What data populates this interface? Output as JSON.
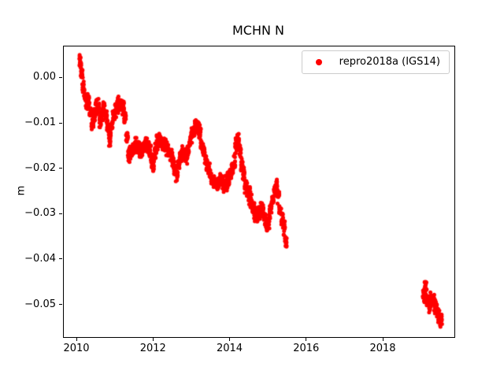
{
  "figure": {
    "background": "#ffffff"
  },
  "chart_data": {
    "type": "scatter",
    "title": "MCHN N",
    "xlabel": "",
    "ylabel": "m",
    "xlim": [
      2009.65,
      2019.85
    ],
    "ylim": [
      -0.057,
      0.007
    ],
    "grid": false,
    "legend_position": "upper right",
    "xticks": [
      {
        "value": 2010,
        "label": "2010"
      },
      {
        "value": 2012,
        "label": "2012"
      },
      {
        "value": 2014,
        "label": "2014"
      },
      {
        "value": 2016,
        "label": "2016"
      },
      {
        "value": 2018,
        "label": "2018"
      }
    ],
    "yticks": [
      {
        "value": 0.0,
        "label": "0.00"
      },
      {
        "value": -0.01,
        "label": "−0.01"
      },
      {
        "value": -0.02,
        "label": "−0.02"
      },
      {
        "value": -0.03,
        "label": "−0.03"
      },
      {
        "value": -0.04,
        "label": "−0.04"
      },
      {
        "value": -0.05,
        "label": "−0.05"
      }
    ],
    "legend": {
      "label": "repro2018a (IGS14)",
      "marker": "circle",
      "marker_color": "#ff0000"
    },
    "series": [
      {
        "name": "repro2018a (IGS14)",
        "color": "#ff0000",
        "marker": "dot",
        "points_per_anchor": 16,
        "x_spread": 0.055,
        "y_jitter": 0.0013,
        "trend": [
          [
            2010.08,
            0.0035
          ],
          [
            2010.12,
            0.001
          ],
          [
            2010.16,
            -0.002
          ],
          [
            2010.2,
            -0.004
          ],
          [
            2010.25,
            -0.0055
          ],
          [
            2010.3,
            -0.005
          ],
          [
            2010.35,
            -0.0075
          ],
          [
            2010.4,
            -0.0095
          ],
          [
            2010.45,
            -0.008
          ],
          [
            2010.5,
            -0.006
          ],
          [
            2010.55,
            -0.0065
          ],
          [
            2010.6,
            -0.0095
          ],
          [
            2010.65,
            -0.008
          ],
          [
            2010.7,
            -0.0065
          ],
          [
            2010.75,
            -0.0085
          ],
          [
            2010.8,
            -0.011
          ],
          [
            2010.85,
            -0.0135
          ],
          [
            2010.9,
            -0.0105
          ],
          [
            2010.95,
            -0.008
          ],
          [
            2011.0,
            -0.0075
          ],
          [
            2011.05,
            -0.006
          ],
          [
            2011.1,
            -0.0055
          ],
          [
            2011.15,
            -0.006
          ],
          [
            2011.2,
            -0.0065
          ],
          [
            2011.25,
            -0.009
          ],
          [
            2011.3,
            -0.013
          ],
          [
            2011.35,
            -0.017
          ],
          [
            2011.4,
            -0.016
          ],
          [
            2011.45,
            -0.0155
          ],
          [
            2011.5,
            -0.015
          ],
          [
            2011.55,
            -0.0145
          ],
          [
            2011.6,
            -0.0155
          ],
          [
            2011.65,
            -0.016
          ],
          [
            2011.7,
            -0.0155
          ],
          [
            2011.75,
            -0.015
          ],
          [
            2011.8,
            -0.0145
          ],
          [
            2011.85,
            -0.015
          ],
          [
            2011.9,
            -0.016
          ],
          [
            2011.95,
            -0.0185
          ],
          [
            2012.0,
            -0.0195
          ],
          [
            2012.05,
            -0.016
          ],
          [
            2012.1,
            -0.014
          ],
          [
            2012.15,
            -0.0135
          ],
          [
            2012.2,
            -0.014
          ],
          [
            2012.25,
            -0.0145
          ],
          [
            2012.3,
            -0.015
          ],
          [
            2012.35,
            -0.0155
          ],
          [
            2012.4,
            -0.016
          ],
          [
            2012.45,
            -0.017
          ],
          [
            2012.5,
            -0.018
          ],
          [
            2012.55,
            -0.02
          ],
          [
            2012.6,
            -0.0215
          ],
          [
            2012.65,
            -0.019
          ],
          [
            2012.7,
            -0.017
          ],
          [
            2012.75,
            -0.0165
          ],
          [
            2012.8,
            -0.017
          ],
          [
            2012.85,
            -0.0175
          ],
          [
            2012.9,
            -0.016
          ],
          [
            2012.95,
            -0.014
          ],
          [
            2013.0,
            -0.0125
          ],
          [
            2013.05,
            -0.0115
          ],
          [
            2013.1,
            -0.0105
          ],
          [
            2013.15,
            -0.0105
          ],
          [
            2013.2,
            -0.012
          ],
          [
            2013.25,
            -0.0145
          ],
          [
            2013.3,
            -0.016
          ],
          [
            2013.35,
            -0.0175
          ],
          [
            2013.4,
            -0.019
          ],
          [
            2013.45,
            -0.0205
          ],
          [
            2013.5,
            -0.022
          ],
          [
            2013.55,
            -0.0225
          ],
          [
            2013.6,
            -0.023
          ],
          [
            2013.65,
            -0.0235
          ],
          [
            2013.7,
            -0.023
          ],
          [
            2013.75,
            -0.0225
          ],
          [
            2013.8,
            -0.023
          ],
          [
            2013.85,
            -0.0235
          ],
          [
            2013.9,
            -0.023
          ],
          [
            2013.95,
            -0.022
          ],
          [
            2014.0,
            -0.021
          ],
          [
            2014.05,
            -0.02
          ],
          [
            2014.1,
            -0.0185
          ],
          [
            2014.15,
            -0.0145
          ],
          [
            2014.2,
            -0.0135
          ],
          [
            2014.25,
            -0.016
          ],
          [
            2014.3,
            -0.019
          ],
          [
            2014.35,
            -0.021
          ],
          [
            2014.4,
            -0.0235
          ],
          [
            2014.45,
            -0.025
          ],
          [
            2014.5,
            -0.026
          ],
          [
            2014.55,
            -0.027
          ],
          [
            2014.6,
            -0.0285
          ],
          [
            2014.65,
            -0.0295
          ],
          [
            2014.7,
            -0.03
          ],
          [
            2014.75,
            -0.0295
          ],
          [
            2014.8,
            -0.029
          ],
          [
            2014.85,
            -0.0295
          ],
          [
            2014.9,
            -0.031
          ],
          [
            2014.95,
            -0.0325
          ],
          [
            2015.0,
            -0.031
          ],
          [
            2015.05,
            -0.029
          ],
          [
            2015.1,
            -0.027
          ],
          [
            2015.15,
            -0.0245
          ],
          [
            2015.2,
            -0.0235
          ],
          [
            2015.25,
            -0.026
          ],
          [
            2015.3,
            -0.029
          ],
          [
            2015.35,
            -0.031
          ],
          [
            2015.4,
            -0.033
          ],
          [
            2015.45,
            -0.036
          ],
          [
            2019.05,
            -0.048
          ],
          [
            2019.1,
            -0.046
          ],
          [
            2019.15,
            -0.049
          ],
          [
            2019.2,
            -0.05
          ],
          [
            2019.25,
            -0.0485
          ],
          [
            2019.3,
            -0.049
          ],
          [
            2019.35,
            -0.05
          ],
          [
            2019.4,
            -0.051
          ],
          [
            2019.45,
            -0.0525
          ],
          [
            2019.5,
            -0.053
          ]
        ]
      }
    ]
  }
}
